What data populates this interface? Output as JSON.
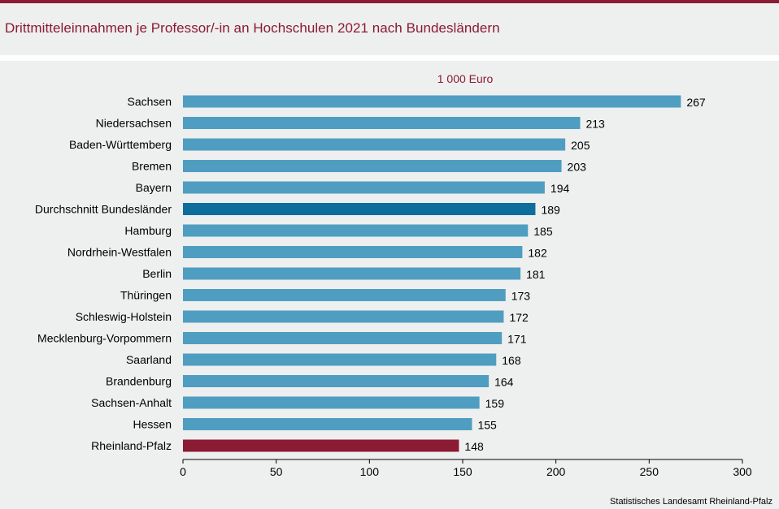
{
  "title": "Drittmitteleinnahmen je Professor/-in an Hochschulen 2021 nach Bundesländern",
  "source": "Statistisches Landesamt Rheinland-Pfalz",
  "colors": {
    "accent": "#8b1a33",
    "bar": "#4f9ec1",
    "bar_average": "#0d6e9c",
    "bar_highlight": "#8b1a33"
  },
  "chart_data": {
    "type": "bar",
    "orientation": "horizontal",
    "unit_label": "1 000 Euro",
    "categories": [
      "Sachsen",
      "Niedersachsen",
      "Baden-Württemberg",
      "Bremen",
      "Bayern",
      "Durchschnitt Bundesländer",
      "Hamburg",
      "Nordrhein-Westfalen",
      "Berlin",
      "Thüringen",
      "Schleswig-Holstein",
      "Mecklenburg-Vorpommern",
      "Saarland",
      "Brandenburg",
      "Sachsen-Anhalt",
      "Hessen",
      "Rheinland-Pfalz"
    ],
    "values": [
      267,
      213,
      205,
      203,
      194,
      189,
      185,
      182,
      181,
      173,
      172,
      171,
      168,
      164,
      159,
      155,
      148
    ],
    "highlight": {
      "Durchschnitt Bundesländer": "bar_average",
      "Rheinland-Pfalz": "bar_highlight"
    },
    "xlim": [
      0,
      300
    ],
    "xticks": [
      0,
      50,
      100,
      150,
      200,
      250,
      300
    ],
    "grid": false
  }
}
